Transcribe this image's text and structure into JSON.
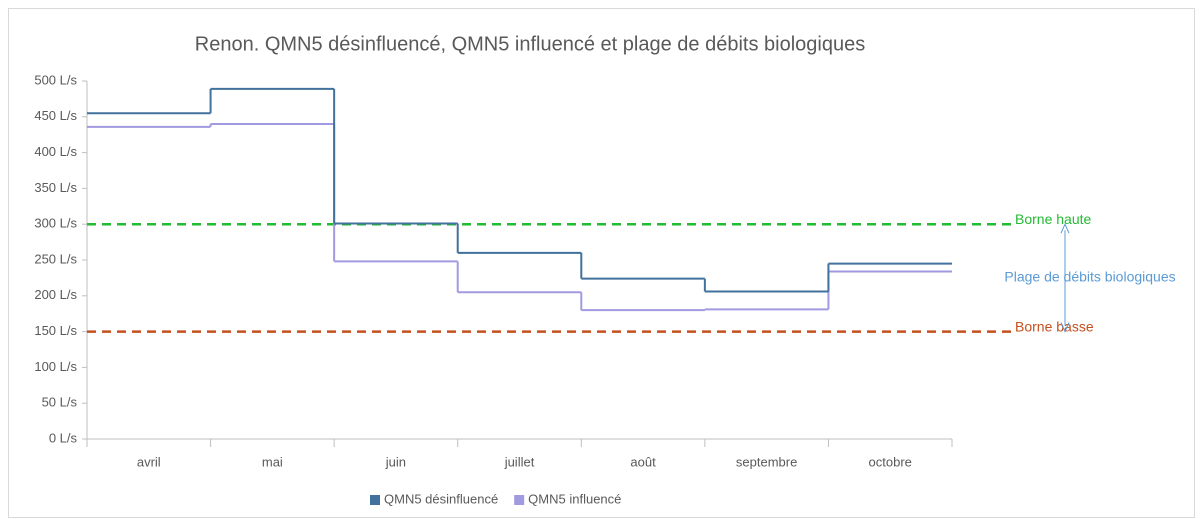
{
  "chart_data": {
    "type": "step",
    "title": "Renon. QMN5 désinfluencé, QMN5 influencé et plage de débits biologiques",
    "categories": [
      "avril",
      "mai",
      "juin",
      "juillet",
      "août",
      "septembre",
      "octobre"
    ],
    "series": [
      {
        "name": "QMN5 désinfluencé",
        "color": "#41719c",
        "values": [
          455,
          489,
          301,
          260,
          224,
          206,
          245
        ]
      },
      {
        "name": "QMN5 influencé",
        "color": "#a29ae0",
        "values": [
          436,
          440,
          248,
          205,
          180,
          181,
          234
        ]
      }
    ],
    "ylim": [
      0,
      500
    ],
    "yticks": [
      {
        "value": 0,
        "label": "0 L/s"
      },
      {
        "value": 50,
        "label": "50 L/s"
      },
      {
        "value": 100,
        "label": "100 L/s"
      },
      {
        "value": 150,
        "label": "150 L/s"
      },
      {
        "value": 200,
        "label": "200 L/s"
      },
      {
        "value": 250,
        "label": "250 L/s"
      },
      {
        "value": 300,
        "label": "300 L/s"
      },
      {
        "value": 350,
        "label": "350 L/s"
      },
      {
        "value": 400,
        "label": "400 L/s"
      },
      {
        "value": 450,
        "label": "450 L/s"
      },
      {
        "value": 500,
        "label": "500 L/s"
      }
    ],
    "grid": false,
    "reference_lines": [
      {
        "name": "Borne haute",
        "value": 300,
        "color": "#22bb33"
      },
      {
        "name": "Borne basse",
        "value": 150,
        "color": "#c5501e"
      }
    ],
    "range_annotation": {
      "text": "Plage de débits biologiques",
      "color": "#5b9bd5"
    },
    "legend": "bottom"
  }
}
